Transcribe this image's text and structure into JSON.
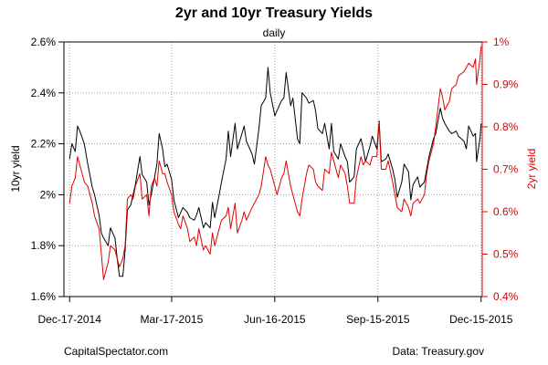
{
  "chart_data": {
    "type": "line",
    "title": "2yr and 10yr Treasury Yields",
    "subtitle": "daily",
    "ylabel_left": "10yr yield",
    "ylabel_right": "2yr yield",
    "ylim_left": [
      1.6,
      2.6
    ],
    "ylim_right": [
      0.4,
      1.0
    ],
    "yticks_left": [
      "1.6%",
      "1.8%",
      "2%",
      "2.2%",
      "2.4%",
      "2.6%"
    ],
    "yticks_right": [
      "0.4%",
      "0.5%",
      "0.6%",
      "0.7%",
      "0.8%",
      "0.9%",
      "1%"
    ],
    "xticks": [
      "Dec-17-2014",
      "Mar-17-2015",
      "Jun-16-2015",
      "Sep-15-2015",
      "Dec-15-2015"
    ],
    "xtick_dates": [
      "2014-12-17",
      "2015-03-17",
      "2015-06-16",
      "2015-09-15",
      "2015-12-15"
    ],
    "xlim": [
      "2014-12-12",
      "2015-12-16"
    ],
    "grid": true,
    "colors": {
      "ten_year": "#000000",
      "two_year": "#e00000"
    },
    "series": [
      {
        "name": "10yr yield",
        "axis": "left",
        "color": "#000000",
        "points": [
          [
            "2014-12-17",
            2.14
          ],
          [
            "2014-12-19",
            2.2
          ],
          [
            "2014-12-22",
            2.17
          ],
          [
            "2014-12-24",
            2.27
          ],
          [
            "2014-12-26",
            2.25
          ],
          [
            "2014-12-30",
            2.2
          ],
          [
            "2015-01-02",
            2.12
          ],
          [
            "2015-01-06",
            2.03
          ],
          [
            "2015-01-08",
            2.0
          ],
          [
            "2015-01-12",
            1.92
          ],
          [
            "2015-01-14",
            1.85
          ],
          [
            "2015-01-16",
            1.83
          ],
          [
            "2015-01-20",
            1.8
          ],
          [
            "2015-01-22",
            1.87
          ],
          [
            "2015-01-26",
            1.83
          ],
          [
            "2015-01-28",
            1.75
          ],
          [
            "2015-01-30",
            1.68
          ],
          [
            "2015-02-02",
            1.68
          ],
          [
            "2015-02-04",
            1.78
          ],
          [
            "2015-02-06",
            1.94
          ],
          [
            "2015-02-09",
            1.96
          ],
          [
            "2015-02-11",
            2.0
          ],
          [
            "2015-02-13",
            2.04
          ],
          [
            "2015-02-17",
            2.15
          ],
          [
            "2015-02-19",
            2.08
          ],
          [
            "2015-02-23",
            2.05
          ],
          [
            "2015-02-25",
            1.96
          ],
          [
            "2015-02-27",
            2.0
          ],
          [
            "2015-03-02",
            2.07
          ],
          [
            "2015-03-04",
            2.12
          ],
          [
            "2015-03-06",
            2.24
          ],
          [
            "2015-03-09",
            2.18
          ],
          [
            "2015-03-11",
            2.11
          ],
          [
            "2015-03-13",
            2.12
          ],
          [
            "2015-03-17",
            2.06
          ],
          [
            "2015-03-19",
            1.98
          ],
          [
            "2015-03-23",
            1.91
          ],
          [
            "2015-03-25",
            1.93
          ],
          [
            "2015-03-27",
            1.95
          ],
          [
            "2015-03-31",
            1.93
          ],
          [
            "2015-04-02",
            1.91
          ],
          [
            "2015-04-06",
            1.9
          ],
          [
            "2015-04-08",
            1.92
          ],
          [
            "2015-04-10",
            1.95
          ],
          [
            "2015-04-14",
            1.87
          ],
          [
            "2015-04-16",
            1.89
          ],
          [
            "2015-04-20",
            1.87
          ],
          [
            "2015-04-22",
            1.97
          ],
          [
            "2015-04-24",
            1.91
          ],
          [
            "2015-04-28",
            2.0
          ],
          [
            "2015-04-30",
            2.05
          ],
          [
            "2015-05-04",
            2.14
          ],
          [
            "2015-05-06",
            2.25
          ],
          [
            "2015-05-08",
            2.15
          ],
          [
            "2015-05-12",
            2.28
          ],
          [
            "2015-05-14",
            2.18
          ],
          [
            "2015-05-18",
            2.24
          ],
          [
            "2015-05-20",
            2.27
          ],
          [
            "2015-05-22",
            2.21
          ],
          [
            "2015-05-27",
            2.16
          ],
          [
            "2015-05-29",
            2.12
          ],
          [
            "2015-06-02",
            2.26
          ],
          [
            "2015-06-04",
            2.35
          ],
          [
            "2015-06-08",
            2.38
          ],
          [
            "2015-06-10",
            2.5
          ],
          [
            "2015-06-12",
            2.4
          ],
          [
            "2015-06-16",
            2.31
          ],
          [
            "2015-06-18",
            2.33
          ],
          [
            "2015-06-22",
            2.37
          ],
          [
            "2015-06-24",
            2.38
          ],
          [
            "2015-06-26",
            2.48
          ],
          [
            "2015-06-30",
            2.35
          ],
          [
            "2015-07-02",
            2.38
          ],
          [
            "2015-07-06",
            2.22
          ],
          [
            "2015-07-08",
            2.2
          ],
          [
            "2015-07-10",
            2.4
          ],
          [
            "2015-07-14",
            2.38
          ],
          [
            "2015-07-16",
            2.36
          ],
          [
            "2015-07-20",
            2.37
          ],
          [
            "2015-07-22",
            2.33
          ],
          [
            "2015-07-24",
            2.26
          ],
          [
            "2015-07-28",
            2.24
          ],
          [
            "2015-07-30",
            2.28
          ],
          [
            "2015-08-03",
            2.18
          ],
          [
            "2015-08-05",
            2.28
          ],
          [
            "2015-08-07",
            2.17
          ],
          [
            "2015-08-11",
            2.14
          ],
          [
            "2015-08-13",
            2.2
          ],
          [
            "2015-08-17",
            2.15
          ],
          [
            "2015-08-19",
            2.13
          ],
          [
            "2015-08-21",
            2.05
          ],
          [
            "2015-08-25",
            2.07
          ],
          [
            "2015-08-27",
            2.18
          ],
          [
            "2015-08-31",
            2.22
          ],
          [
            "2015-09-02",
            2.18
          ],
          [
            "2015-09-04",
            2.13
          ],
          [
            "2015-09-08",
            2.19
          ],
          [
            "2015-09-10",
            2.23
          ],
          [
            "2015-09-14",
            2.18
          ],
          [
            "2015-09-16",
            2.29
          ],
          [
            "2015-09-18",
            2.13
          ],
          [
            "2015-09-22",
            2.14
          ],
          [
            "2015-09-24",
            2.16
          ],
          [
            "2015-09-28",
            2.1
          ],
          [
            "2015-09-30",
            2.06
          ],
          [
            "2015-10-02",
            1.99
          ],
          [
            "2015-10-06",
            2.05
          ],
          [
            "2015-10-08",
            2.12
          ],
          [
            "2015-10-12",
            2.09
          ],
          [
            "2015-10-14",
            1.98
          ],
          [
            "2015-10-16",
            2.04
          ],
          [
            "2015-10-20",
            2.07
          ],
          [
            "2015-10-22",
            2.03
          ],
          [
            "2015-10-26",
            2.05
          ],
          [
            "2015-10-28",
            2.1
          ],
          [
            "2015-10-30",
            2.15
          ],
          [
            "2015-11-03",
            2.22
          ],
          [
            "2015-11-05",
            2.24
          ],
          [
            "2015-11-09",
            2.34
          ],
          [
            "2015-11-11",
            2.3
          ],
          [
            "2015-11-13",
            2.28
          ],
          [
            "2015-11-17",
            2.25
          ],
          [
            "2015-11-19",
            2.24
          ],
          [
            "2015-11-23",
            2.25
          ],
          [
            "2015-11-25",
            2.23
          ],
          [
            "2015-11-30",
            2.21
          ],
          [
            "2015-12-02",
            2.18
          ],
          [
            "2015-12-04",
            2.27
          ],
          [
            "2015-12-08",
            2.23
          ],
          [
            "2015-12-10",
            2.24
          ],
          [
            "2015-12-11",
            2.13
          ],
          [
            "2015-12-14",
            2.22
          ],
          [
            "2015-12-15",
            2.28
          ]
        ]
      },
      {
        "name": "2yr yield",
        "axis": "right",
        "color": "#e00000",
        "points": [
          [
            "2014-12-17",
            0.62
          ],
          [
            "2014-12-19",
            0.66
          ],
          [
            "2014-12-22",
            0.68
          ],
          [
            "2014-12-24",
            0.73
          ],
          [
            "2014-12-26",
            0.71
          ],
          [
            "2014-12-30",
            0.67
          ],
          [
            "2015-01-02",
            0.66
          ],
          [
            "2015-01-06",
            0.62
          ],
          [
            "2015-01-08",
            0.59
          ],
          [
            "2015-01-12",
            0.56
          ],
          [
            "2015-01-14",
            0.5
          ],
          [
            "2015-01-16",
            0.44
          ],
          [
            "2015-01-20",
            0.48
          ],
          [
            "2015-01-22",
            0.52
          ],
          [
            "2015-01-26",
            0.51
          ],
          [
            "2015-01-28",
            0.49
          ],
          [
            "2015-01-30",
            0.47
          ],
          [
            "2015-02-02",
            0.49
          ],
          [
            "2015-02-04",
            0.52
          ],
          [
            "2015-02-06",
            0.63
          ],
          [
            "2015-02-09",
            0.64
          ],
          [
            "2015-02-11",
            0.63
          ],
          [
            "2015-02-13",
            0.66
          ],
          [
            "2015-02-17",
            0.69
          ],
          [
            "2015-02-19",
            0.63
          ],
          [
            "2015-02-23",
            0.64
          ],
          [
            "2015-02-25",
            0.59
          ],
          [
            "2015-02-27",
            0.66
          ],
          [
            "2015-03-02",
            0.68
          ],
          [
            "2015-03-04",
            0.66
          ],
          [
            "2015-03-06",
            0.72
          ],
          [
            "2015-03-09",
            0.69
          ],
          [
            "2015-03-11",
            0.69
          ],
          [
            "2015-03-13",
            0.67
          ],
          [
            "2015-03-17",
            0.64
          ],
          [
            "2015-03-19",
            0.6
          ],
          [
            "2015-03-23",
            0.57
          ],
          [
            "2015-03-25",
            0.56
          ],
          [
            "2015-03-27",
            0.59
          ],
          [
            "2015-03-31",
            0.56
          ],
          [
            "2015-04-02",
            0.53
          ],
          [
            "2015-04-06",
            0.54
          ],
          [
            "2015-04-08",
            0.52
          ],
          [
            "2015-04-10",
            0.56
          ],
          [
            "2015-04-14",
            0.51
          ],
          [
            "2015-04-16",
            0.52
          ],
          [
            "2015-04-20",
            0.5
          ],
          [
            "2015-04-22",
            0.55
          ],
          [
            "2015-04-24",
            0.52
          ],
          [
            "2015-04-28",
            0.56
          ],
          [
            "2015-04-30",
            0.58
          ],
          [
            "2015-05-04",
            0.59
          ],
          [
            "2015-05-06",
            0.61
          ],
          [
            "2015-05-08",
            0.56
          ],
          [
            "2015-05-12",
            0.62
          ],
          [
            "2015-05-14",
            0.55
          ],
          [
            "2015-05-18",
            0.58
          ],
          [
            "2015-05-20",
            0.6
          ],
          [
            "2015-05-22",
            0.58
          ],
          [
            "2015-05-27",
            0.61
          ],
          [
            "2015-05-29",
            0.62
          ],
          [
            "2015-06-02",
            0.64
          ],
          [
            "2015-06-04",
            0.66
          ],
          [
            "2015-06-08",
            0.73
          ],
          [
            "2015-06-10",
            0.71
          ],
          [
            "2015-06-12",
            0.7
          ],
          [
            "2015-06-16",
            0.66
          ],
          [
            "2015-06-18",
            0.64
          ],
          [
            "2015-06-22",
            0.68
          ],
          [
            "2015-06-24",
            0.69
          ],
          [
            "2015-06-26",
            0.72
          ],
          [
            "2015-06-30",
            0.66
          ],
          [
            "2015-07-02",
            0.64
          ],
          [
            "2015-07-06",
            0.6
          ],
          [
            "2015-07-08",
            0.59
          ],
          [
            "2015-07-10",
            0.63
          ],
          [
            "2015-07-14",
            0.69
          ],
          [
            "2015-07-16",
            0.71
          ],
          [
            "2015-07-20",
            0.7
          ],
          [
            "2015-07-22",
            0.67
          ],
          [
            "2015-07-24",
            0.66
          ],
          [
            "2015-07-28",
            0.65
          ],
          [
            "2015-07-30",
            0.7
          ],
          [
            "2015-08-03",
            0.69
          ],
          [
            "2015-08-05",
            0.74
          ],
          [
            "2015-08-07",
            0.72
          ],
          [
            "2015-08-11",
            0.68
          ],
          [
            "2015-08-13",
            0.71
          ],
          [
            "2015-08-17",
            0.69
          ],
          [
            "2015-08-19",
            0.66
          ],
          [
            "2015-08-21",
            0.62
          ],
          [
            "2015-08-25",
            0.62
          ],
          [
            "2015-08-27",
            0.68
          ],
          [
            "2015-08-31",
            0.73
          ],
          [
            "2015-09-02",
            0.71
          ],
          [
            "2015-09-04",
            0.72
          ],
          [
            "2015-09-08",
            0.71
          ],
          [
            "2015-09-10",
            0.73
          ],
          [
            "2015-09-14",
            0.73
          ],
          [
            "2015-09-16",
            0.81
          ],
          [
            "2015-09-18",
            0.7
          ],
          [
            "2015-09-22",
            0.7
          ],
          [
            "2015-09-24",
            0.72
          ],
          [
            "2015-09-28",
            0.67
          ],
          [
            "2015-09-30",
            0.64
          ],
          [
            "2015-10-02",
            0.61
          ],
          [
            "2015-10-06",
            0.6
          ],
          [
            "2015-10-08",
            0.63
          ],
          [
            "2015-10-12",
            0.61
          ],
          [
            "2015-10-14",
            0.59
          ],
          [
            "2015-10-16",
            0.62
          ],
          [
            "2015-10-20",
            0.63
          ],
          [
            "2015-10-22",
            0.62
          ],
          [
            "2015-10-26",
            0.64
          ],
          [
            "2015-10-28",
            0.69
          ],
          [
            "2015-10-30",
            0.72
          ],
          [
            "2015-11-03",
            0.76
          ],
          [
            "2015-11-05",
            0.8
          ],
          [
            "2015-11-09",
            0.89
          ],
          [
            "2015-11-11",
            0.87
          ],
          [
            "2015-11-13",
            0.84
          ],
          [
            "2015-11-17",
            0.86
          ],
          [
            "2015-11-19",
            0.89
          ],
          [
            "2015-11-23",
            0.9
          ],
          [
            "2015-11-25",
            0.92
          ],
          [
            "2015-11-30",
            0.93
          ],
          [
            "2015-12-02",
            0.94
          ],
          [
            "2015-12-04",
            0.95
          ],
          [
            "2015-12-08",
            0.94
          ],
          [
            "2015-12-10",
            0.96
          ],
          [
            "2015-12-11",
            0.9
          ],
          [
            "2015-12-14",
            0.96
          ],
          [
            "2015-12-15",
            0.99
          ]
        ]
      }
    ]
  },
  "footer": {
    "left": "CapitalSpectator.com",
    "right": "Data: Treasury.gov"
  }
}
